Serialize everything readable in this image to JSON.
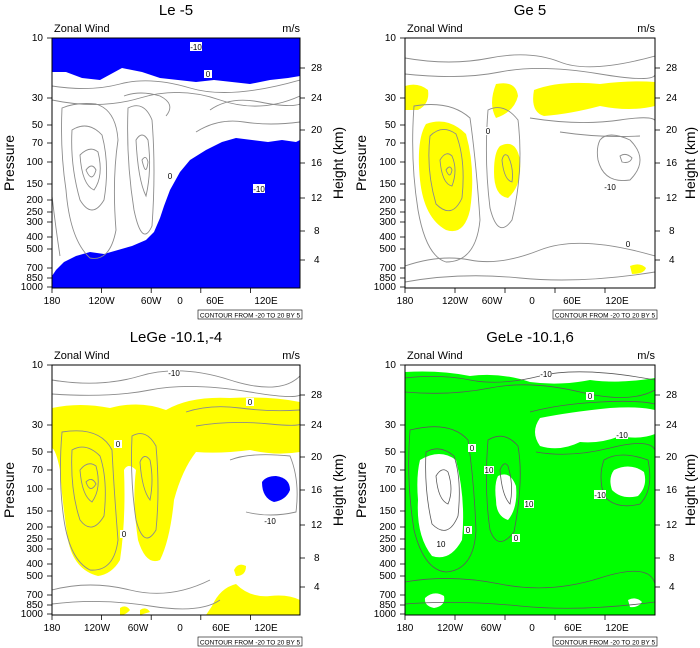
{
  "colors": {
    "blue": "#0000ff",
    "yellow": "#ffff00",
    "green": "#00ff00",
    "contour": "#8c8c8c",
    "frame": "#000000"
  },
  "common": {
    "subtitle_left": "Zonal Wind",
    "subtitle_right": "m/s",
    "ylabel_left": "Pressure",
    "ylabel_right": "Height (km)",
    "info_label": "CONTOUR FROM -20 TO 20 BY 5"
  },
  "chart_data": [
    {
      "type": "contour",
      "title": "Le -5",
      "fill": "blue",
      "fill_rule": "values less than or equal to -5 shaded",
      "x_ticks": [
        "180",
        "120W",
        "60W",
        "0",
        "60E",
        "120E"
      ],
      "y_ticks": [
        "10",
        "30",
        "50",
        "70",
        "100",
        "150",
        "200",
        "250",
        "300",
        "400",
        "500",
        "700",
        "850",
        "1000"
      ],
      "height_ticks": [
        "28",
        "24",
        "20",
        "16",
        "12",
        "8",
        "4"
      ],
      "contour_labels": [
        "-10",
        "0",
        "-10",
        "0"
      ],
      "contour_interval": {
        "min": -20,
        "max": 20,
        "step": 5
      },
      "ylog": true
    },
    {
      "type": "contour",
      "title": "Ge 5",
      "fill": "yellow",
      "fill_rule": "values greater than or equal to 5 shaded",
      "x_ticks": [
        "180",
        "120W",
        "60W",
        "0",
        "60E",
        "120E"
      ],
      "y_ticks": [
        "10",
        "30",
        "50",
        "70",
        "100",
        "150",
        "200",
        "250",
        "300",
        "400",
        "500",
        "700",
        "850",
        "1000"
      ],
      "height_ticks": [
        "28",
        "24",
        "20",
        "16",
        "12",
        "8",
        "4"
      ],
      "contour_labels": [
        "0",
        "-10",
        "0"
      ],
      "contour_interval": {
        "min": -20,
        "max": 20,
        "step": 5
      },
      "ylog": true
    },
    {
      "type": "contour",
      "title": "LeGe -10.1,-4",
      "fill": "yellow / blue",
      "fill_rule": "values less than or equal to -10.1 blue, greater than or equal to -4 yellow",
      "x_ticks": [
        "180",
        "120W",
        "60W",
        "0",
        "60E",
        "120E"
      ],
      "y_ticks": [
        "10",
        "30",
        "50",
        "70",
        "100",
        "150",
        "200",
        "250",
        "300",
        "400",
        "500",
        "700",
        "850",
        "1000"
      ],
      "height_ticks": [
        "28",
        "24",
        "20",
        "16",
        "12",
        "8",
        "4"
      ],
      "contour_labels": [
        "-10",
        "0",
        "0",
        "-10",
        "0"
      ],
      "contour_interval": {
        "min": -20,
        "max": 20,
        "step": 5
      },
      "ylog": true
    },
    {
      "type": "contour",
      "title": "GeLe -10.1,6",
      "fill": "green",
      "fill_rule": "values between -10.1 and 6 shaded",
      "x_ticks": [
        "180",
        "120W",
        "60W",
        "0",
        "60E",
        "120E"
      ],
      "y_ticks": [
        "10",
        "30",
        "50",
        "70",
        "100",
        "150",
        "200",
        "250",
        "300",
        "400",
        "500",
        "700",
        "850",
        "1000"
      ],
      "height_ticks": [
        "28",
        "24",
        "20",
        "16",
        "12",
        "8",
        "4"
      ],
      "contour_labels": [
        "-10",
        "0",
        "0",
        "10",
        "-10",
        "10",
        "0",
        "0",
        "-10",
        "10"
      ],
      "contour_interval": {
        "min": -20,
        "max": 20,
        "step": 5
      },
      "ylog": true
    }
  ]
}
